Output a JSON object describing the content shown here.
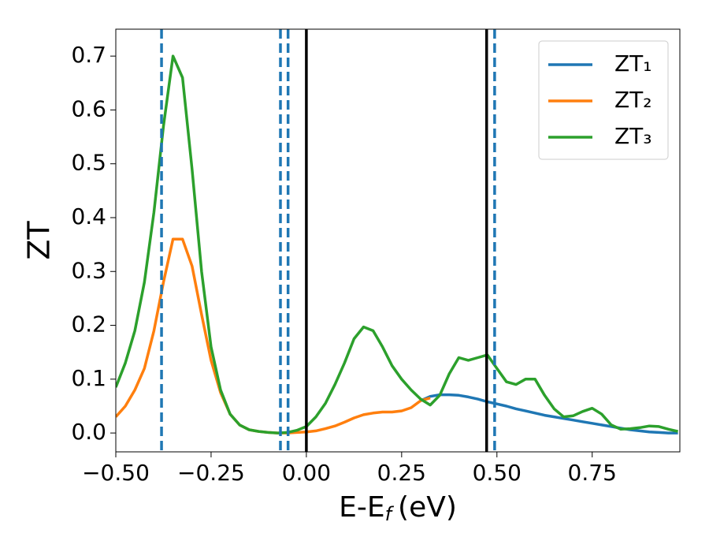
{
  "chart_data": {
    "type": "line",
    "xlabel": {
      "main": "E-E",
      "sub": "f",
      "unit": "(eV)"
    },
    "ylabel": "ZT",
    "x": [
      -0.5,
      -0.475,
      -0.45,
      -0.425,
      -0.4,
      -0.375,
      -0.35,
      -0.325,
      -0.3,
      -0.275,
      -0.25,
      -0.225,
      -0.2,
      -0.175,
      -0.15,
      -0.125,
      -0.1,
      -0.075,
      -0.05,
      -0.025,
      0,
      0.025,
      0.05,
      0.075,
      0.1,
      0.125,
      0.15,
      0.175,
      0.2,
      0.225,
      0.25,
      0.275,
      0.3,
      0.325,
      0.35,
      0.375,
      0.4,
      0.425,
      0.45,
      0.475,
      0.5,
      0.525,
      0.55,
      0.575,
      0.6,
      0.625,
      0.65,
      0.675,
      0.7,
      0.725,
      0.75,
      0.775,
      0.8,
      0.825,
      0.85,
      0.875,
      0.9,
      0.925,
      0.95,
      0.975
    ],
    "series": [
      {
        "name": "ZT₁",
        "color": "#1f77b4",
        "values": [
          null,
          null,
          null,
          null,
          null,
          null,
          null,
          null,
          null,
          null,
          null,
          null,
          null,
          null,
          null,
          null,
          null,
          null,
          null,
          null,
          null,
          null,
          null,
          null,
          null,
          null,
          null,
          null,
          null,
          null,
          null,
          null,
          0.06,
          0.068,
          0.071,
          0.071,
          0.07,
          0.067,
          0.063,
          0.058,
          0.054,
          0.05,
          0.045,
          0.041,
          0.037,
          0.033,
          0.03,
          0.027,
          0.024,
          0.021,
          0.018,
          0.015,
          0.012,
          0.009,
          0.006,
          0.004,
          0.002,
          0.001,
          0.0,
          0.0
        ]
      },
      {
        "name": "ZT₂",
        "color": "#ff7f0e",
        "values": [
          0.03,
          0.05,
          0.08,
          0.12,
          0.19,
          0.28,
          0.36,
          0.36,
          0.31,
          0.22,
          0.135,
          0.075,
          0.035,
          0.015,
          0.006,
          0.003,
          0.001,
          0,
          0,
          0.001,
          0.002,
          0.004,
          0.008,
          0.013,
          0.02,
          0.028,
          0.034,
          0.037,
          0.039,
          0.039,
          0.041,
          0.047,
          0.06,
          0.065,
          null,
          null,
          null,
          null,
          null,
          null,
          null,
          null,
          null,
          null,
          null,
          null,
          null,
          null,
          null,
          null,
          null,
          null,
          null,
          null,
          null,
          null,
          null,
          null,
          null,
          null
        ]
      },
      {
        "name": "ZT₃",
        "color": "#2ca02c",
        "values": [
          0.085,
          0.13,
          0.19,
          0.28,
          0.41,
          0.57,
          0.7,
          0.66,
          0.49,
          0.3,
          0.16,
          0.08,
          0.035,
          0.015,
          0.006,
          0.003,
          0.001,
          0.0,
          0.001,
          0.005,
          0.012,
          0.03,
          0.055,
          0.09,
          0.13,
          0.175,
          0.197,
          0.19,
          0.16,
          0.125,
          0.1,
          0.08,
          0.063,
          0.052,
          0.07,
          0.11,
          0.14,
          0.135,
          0.14,
          0.145,
          0.12,
          0.095,
          0.09,
          0.1,
          0.1,
          0.07,
          0.045,
          0.03,
          0.032,
          0.04,
          0.046,
          0.035,
          0.015,
          0.007,
          0.008,
          0.01,
          0.013,
          0.012,
          0.007,
          0.003
        ]
      }
    ],
    "vlines": [
      {
        "x": -0.38,
        "color": "#1f77b4",
        "dashed": true
      },
      {
        "x": -0.068,
        "color": "#1f77b4",
        "dashed": true
      },
      {
        "x": -0.048,
        "color": "#1f77b4",
        "dashed": true
      },
      {
        "x": 0.0,
        "color": "#000000",
        "dashed": false
      },
      {
        "x": 0.473,
        "color": "#000000",
        "dashed": false
      },
      {
        "x": 0.494,
        "color": "#1f77b4",
        "dashed": true
      }
    ],
    "xlim": [
      -0.5,
      0.98
    ],
    "ylim": [
      -0.035,
      0.75
    ],
    "xticks": [
      {
        "value": -0.5,
        "label": "−0.50"
      },
      {
        "value": -0.25,
        "label": "−0.25"
      },
      {
        "value": 0,
        "label": "0.00"
      },
      {
        "value": 0.25,
        "label": "0.25"
      },
      {
        "value": 0.5,
        "label": "0.50"
      },
      {
        "value": 0.75,
        "label": "0.75"
      }
    ],
    "yticks": [
      {
        "value": 0,
        "label": "0.0"
      },
      {
        "value": 0.1,
        "label": "0.1"
      },
      {
        "value": 0.2,
        "label": "0.2"
      },
      {
        "value": 0.3,
        "label": "0.3"
      },
      {
        "value": 0.4,
        "label": "0.4"
      },
      {
        "value": 0.5,
        "label": "0.5"
      },
      {
        "value": 0.6,
        "label": "0.6"
      },
      {
        "value": 0.7,
        "label": "0.7"
      }
    ],
    "legend": "upper right"
  }
}
